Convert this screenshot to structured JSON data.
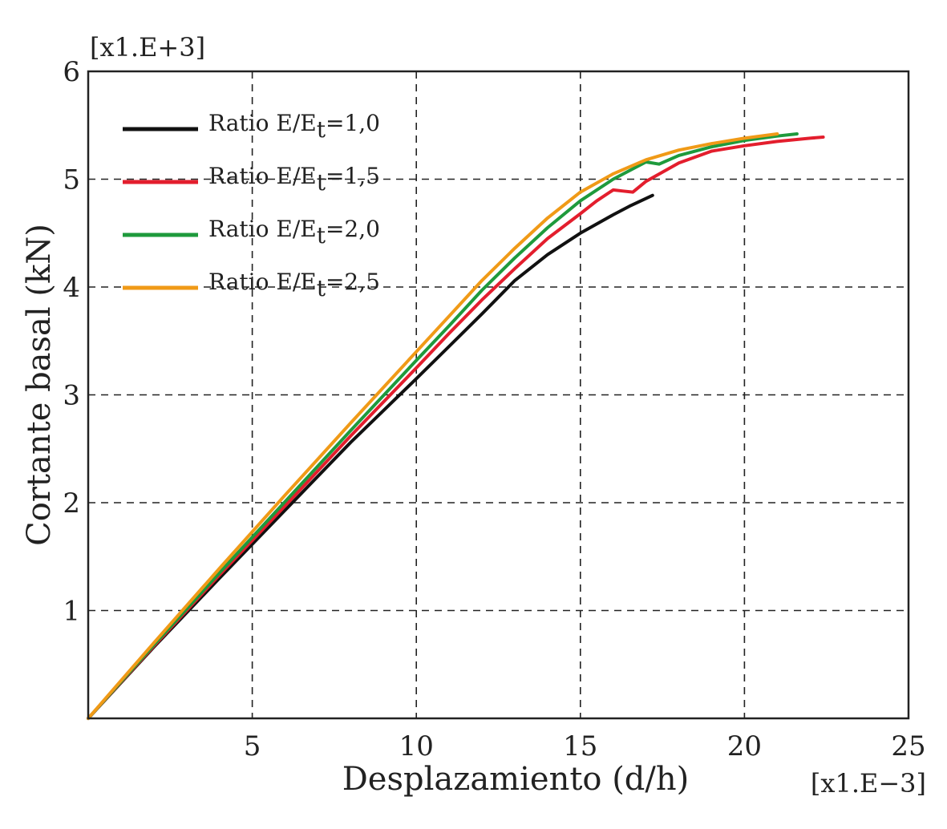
{
  "chart_data": {
    "type": "line",
    "title": "",
    "xlabel": "Desplazamiento (d/h)",
    "ylabel": "Cortante basal (kN)",
    "x_multiplier_label": "[x1.E−3]",
    "y_multiplier_label": "[x1.E+3]",
    "xlim": [
      0,
      25
    ],
    "ylim": [
      0,
      6
    ],
    "xticks": [
      5,
      10,
      15,
      20,
      25
    ],
    "yticks": [
      1,
      2,
      3,
      4,
      5,
      6
    ],
    "grid": true,
    "legend_position": "top-left",
    "series": [
      {
        "name": "Ratio E/Et=1,0",
        "legend_prefix": "Ratio E/E",
        "legend_sub": "t",
        "legend_suffix": "=1,0",
        "color": "#111111",
        "x": [
          0,
          2,
          4,
          6,
          8,
          10,
          11,
          12,
          13,
          14,
          15,
          16,
          16.5,
          17.2
        ],
        "y": [
          0,
          0.66,
          1.3,
          1.93,
          2.56,
          3.15,
          3.45,
          3.75,
          4.06,
          4.3,
          4.5,
          4.67,
          4.75,
          4.85
        ]
      },
      {
        "name": "Ratio E/Et=1,5",
        "legend_prefix": "Ratio E/E",
        "legend_sub": "t",
        "legend_suffix": "=1,5",
        "color": "#e31e2d",
        "x": [
          0,
          2,
          4,
          6,
          8,
          10,
          11,
          12,
          13,
          14,
          15,
          15.5,
          16,
          16.3,
          16.6,
          17,
          18,
          19,
          20,
          21,
          22,
          22.4
        ],
        "y": [
          0,
          0.67,
          1.33,
          1.97,
          2.62,
          3.25,
          3.57,
          3.88,
          4.17,
          4.45,
          4.68,
          4.8,
          4.9,
          4.89,
          4.88,
          4.98,
          5.15,
          5.26,
          5.31,
          5.35,
          5.38,
          5.39
        ]
      },
      {
        "name": "Ratio E/Et=2,0",
        "legend_prefix": "Ratio E/E",
        "legend_sub": "t",
        "legend_suffix": "=2,0",
        "color": "#1e9a3c",
        "x": [
          0,
          2,
          4,
          6,
          8,
          10,
          11,
          12,
          13,
          14,
          15,
          16,
          17,
          17.4,
          18,
          19,
          20,
          21,
          21.6
        ],
        "y": [
          0,
          0.68,
          1.35,
          2.01,
          2.67,
          3.32,
          3.64,
          3.97,
          4.27,
          4.55,
          4.8,
          5.0,
          5.16,
          5.14,
          5.22,
          5.3,
          5.36,
          5.4,
          5.42
        ]
      },
      {
        "name": "Ratio E/Et=2,5",
        "legend_prefix": "Ratio E/E",
        "legend_sub": "t",
        "legend_suffix": "=2,5",
        "color": "#f09a17",
        "x": [
          0,
          2,
          4,
          6,
          8,
          10,
          11,
          12,
          13,
          14,
          15,
          16,
          17,
          18,
          19,
          20,
          21
        ],
        "y": [
          0,
          0.7,
          1.39,
          2.07,
          2.74,
          3.4,
          3.73,
          4.06,
          4.36,
          4.64,
          4.88,
          5.05,
          5.18,
          5.27,
          5.33,
          5.38,
          5.42
        ]
      }
    ]
  }
}
